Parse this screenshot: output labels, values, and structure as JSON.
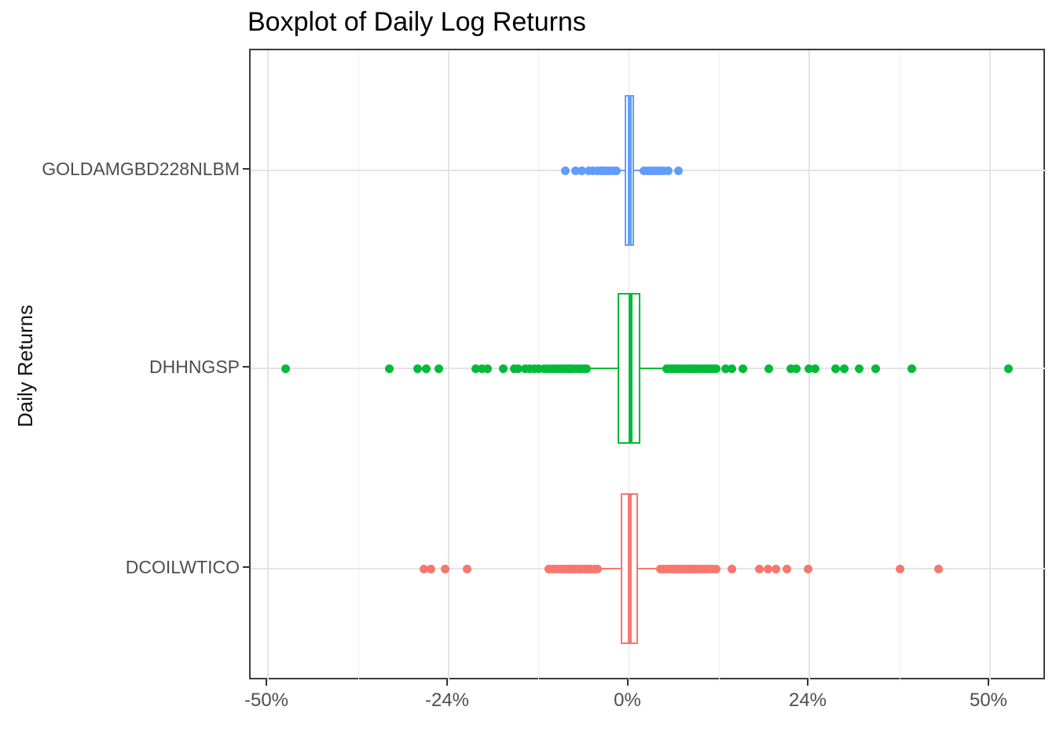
{
  "chart_data": {
    "type": "boxplot",
    "orientation": "horizontal",
    "title": "Boxplot of Daily Log Returns",
    "y_axis_title": "Daily Returns",
    "x_ticks": {
      "labels": [
        "-50%",
        "-24%",
        "0%",
        "24%",
        "50%"
      ],
      "values": [
        -50,
        -24,
        0,
        24,
        50
      ]
    },
    "value_unit": "percent daily log return",
    "grid": {
      "vertical_major": true,
      "vertical_minor": true,
      "horizontal_major": true,
      "legend": "none"
    },
    "categories_top_to_bottom": [
      "GOLDAMGBD228NLBM",
      "DHHNGSP",
      "DCOILWTICO"
    ],
    "series": [
      {
        "name": "GOLDAMGBD228NLBM",
        "color": "#619CFF",
        "q1": -0.6,
        "median": 0.1,
        "q3": 0.7,
        "whisker_low": -1.6,
        "whisker_high": 1.9,
        "outliers": [
          -8.5,
          -7.1,
          -6.3,
          -5.3,
          -4.8,
          -4.2,
          -3.8,
          -3.4,
          -3.0,
          -2.6,
          -2.1,
          -1.7,
          2.0,
          2.5,
          2.9,
          3.3,
          3.7,
          4.1,
          4.6,
          5.2,
          6.6
        ]
      },
      {
        "name": "DHHNGSP",
        "color": "#00BA38",
        "q1": -1.5,
        "median": 0.2,
        "q3": 1.5,
        "whisker_low": -5.7,
        "whisker_high": 4.8,
        "outliers": [
          -47.5,
          -32.5,
          -28.5,
          -27.2,
          -25.4,
          -20.4,
          -19.6,
          -18.8,
          -16.7,
          -15.3,
          -14.7,
          -13.8,
          -13.2,
          -12.6,
          -12.0,
          -11.3,
          -10.8,
          -10.3,
          -9.8,
          -9.3,
          -8.9,
          -8.5,
          -8.1,
          -7.7,
          -7.3,
          -6.8,
          -6.4,
          -6.0,
          -5.6,
          5.0,
          5.4,
          5.8,
          6.2,
          6.6,
          7.0,
          7.5,
          7.9,
          8.3,
          8.7,
          9.1,
          9.5,
          10.0,
          10.4,
          10.8,
          11.2,
          11.6,
          12.9,
          13.7,
          15.2,
          18.6,
          21.5,
          22.3,
          23.9,
          24.9,
          27.8,
          29.0,
          31.2,
          33.5,
          38.7,
          52.7
        ]
      },
      {
        "name": "DCOILWTICO",
        "color": "#F8766D",
        "q1": -1.1,
        "median": 0.1,
        "q3": 1.2,
        "whisker_low": -4.0,
        "whisker_high": 3.6,
        "outliers": [
          -27.6,
          -26.5,
          -24.5,
          -21.5,
          -10.7,
          -10.1,
          -9.7,
          -9.2,
          -8.8,
          -8.4,
          -8.0,
          -7.6,
          -7.2,
          -6.7,
          -6.3,
          -5.9,
          -5.5,
          -5.1,
          -4.6,
          -4.2,
          4.2,
          4.6,
          5.1,
          5.5,
          5.9,
          6.3,
          6.7,
          7.2,
          7.6,
          8.0,
          8.4,
          8.8,
          9.2,
          9.7,
          10.1,
          10.6,
          11.1,
          11.6,
          13.7,
          17.4,
          18.5,
          19.6,
          21.0,
          23.8,
          37.1,
          42.6
        ]
      }
    ]
  },
  "colors": {
    "background": "#ffffff",
    "panel_border": "#3c3c3c",
    "grid_major": "#e4e4e4",
    "grid_minor": "#f0f0f0",
    "axis_text": "#4d4d4d",
    "title_text": "#000000"
  }
}
